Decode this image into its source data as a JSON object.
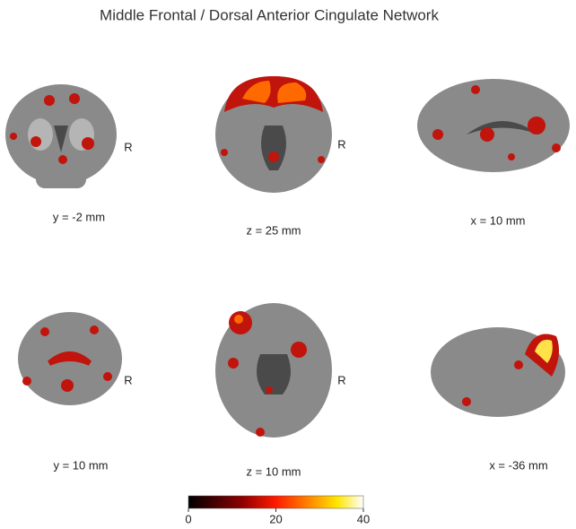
{
  "title": "Middle Frontal / Dorsal Anterior Cingulate Network",
  "panels": [
    {
      "label": "y = -2 mm",
      "side": "R"
    },
    {
      "label": "z = 25 mm",
      "side": "R"
    },
    {
      "label": "x = 10 mm"
    },
    {
      "label": "y = 10 mm",
      "side": "R"
    },
    {
      "label": "z = 10 mm",
      "side": "R"
    },
    {
      "label": "x = -36 mm"
    }
  ],
  "colorbar": {
    "range": [
      0,
      40
    ],
    "ticks": [
      0,
      20,
      40
    ]
  }
}
